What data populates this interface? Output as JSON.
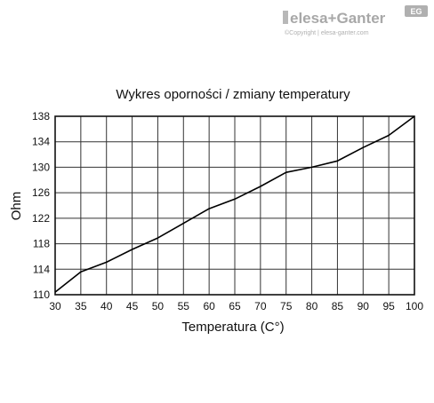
{
  "brand": {
    "name": "elesa+Ganter",
    "badge": "EG",
    "copyright": "©Copyright | elesa-ganter.com"
  },
  "chart_data": {
    "type": "line",
    "title": "Wykres oporności / zmiany temperatury",
    "xlabel": "Temperatura (C°)",
    "ylabel": "Ohm",
    "xlim": [
      30,
      100
    ],
    "ylim": [
      110,
      138
    ],
    "xticks": [
      30,
      35,
      40,
      45,
      50,
      55,
      60,
      65,
      70,
      75,
      80,
      85,
      90,
      95,
      100
    ],
    "yticks": [
      110,
      114,
      118,
      122,
      126,
      130,
      134,
      138
    ],
    "grid": true,
    "series": [
      {
        "x": [
          30,
          35,
          40,
          45,
          50,
          55,
          60,
          65,
          70,
          75,
          80,
          85,
          90,
          95,
          100
        ],
        "y": [
          110.4,
          113.6,
          115.1,
          117.1,
          118.9,
          121.2,
          123.5,
          125.0,
          127.0,
          129.2,
          130.0,
          131.0,
          133.1,
          135.0,
          138.0
        ]
      }
    ],
    "line_color": "#000000",
    "grid_color": "#333333"
  }
}
